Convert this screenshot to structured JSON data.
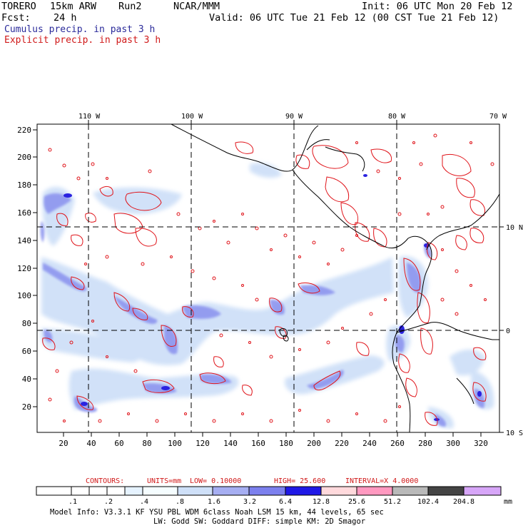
{
  "header": {
    "model": "TORERO",
    "resolution": "15km ARW",
    "run": "Run2",
    "org": "NCAR/MMM",
    "init": "Init: 06 UTC Mon 20 Feb 12",
    "fcst_label": "Fcst:",
    "fcst_value": "24 h",
    "valid": "Valid: 06 UTC Tue 21 Feb 12 (00 CST Tue 21 Feb 12)"
  },
  "legend": {
    "cumulus": "Cumulus precip. in past 3 h",
    "explicit": "Explicit precip. in past 3 h"
  },
  "map": {
    "top_lon_labels": [
      "110 W",
      "100 W",
      "90 W",
      "80 W",
      "70 W"
    ],
    "right_lat_labels": [
      "10 N",
      "0",
      "10 S"
    ],
    "y_ticks": [
      "220",
      "200",
      "180",
      "160",
      "140",
      "120",
      "100",
      "80",
      "60",
      "40",
      "20"
    ],
    "x_ticks": [
      "20",
      "40",
      "60",
      "80",
      "100",
      "120",
      "140",
      "160",
      "180",
      "200",
      "220",
      "240",
      "260",
      "280",
      "300",
      "320"
    ]
  },
  "contours": {
    "label": "CONTOURS:",
    "units": "UNITS=mm",
    "low": "LOW= 0.10000",
    "high": "HIGH= 25.600",
    "interval": "INTERVAL=X 4.0000"
  },
  "colorbar": {
    "labels": [
      ".1",
      ".2",
      ".4",
      ".8",
      "1.6",
      "3.2",
      "6.4",
      "12.8",
      "25.6",
      "51.2",
      "102.4",
      "204.8"
    ],
    "unit": "mm",
    "colors": [
      "#ffffff",
      "#ffffff",
      "#e6f3ff",
      "#f5fdff",
      "#cfe0f8",
      "#a6aef2",
      "#7c80ee",
      "#4d4ee8",
      "#1f18e6",
      "#ffd9dc",
      "#ff99c0",
      "#b9b9b9",
      "#444444",
      "#d7a6f8"
    ]
  },
  "footer": {
    "line1": "Model Info: V3.3.1   KF     YSU PBL  WDM 6class  Noah LSM  15 km,   44 levels,   65 sec",
    "line2": "LW: Godd SW: Goddard DIFF: simple KM: 2D Smagor"
  }
}
